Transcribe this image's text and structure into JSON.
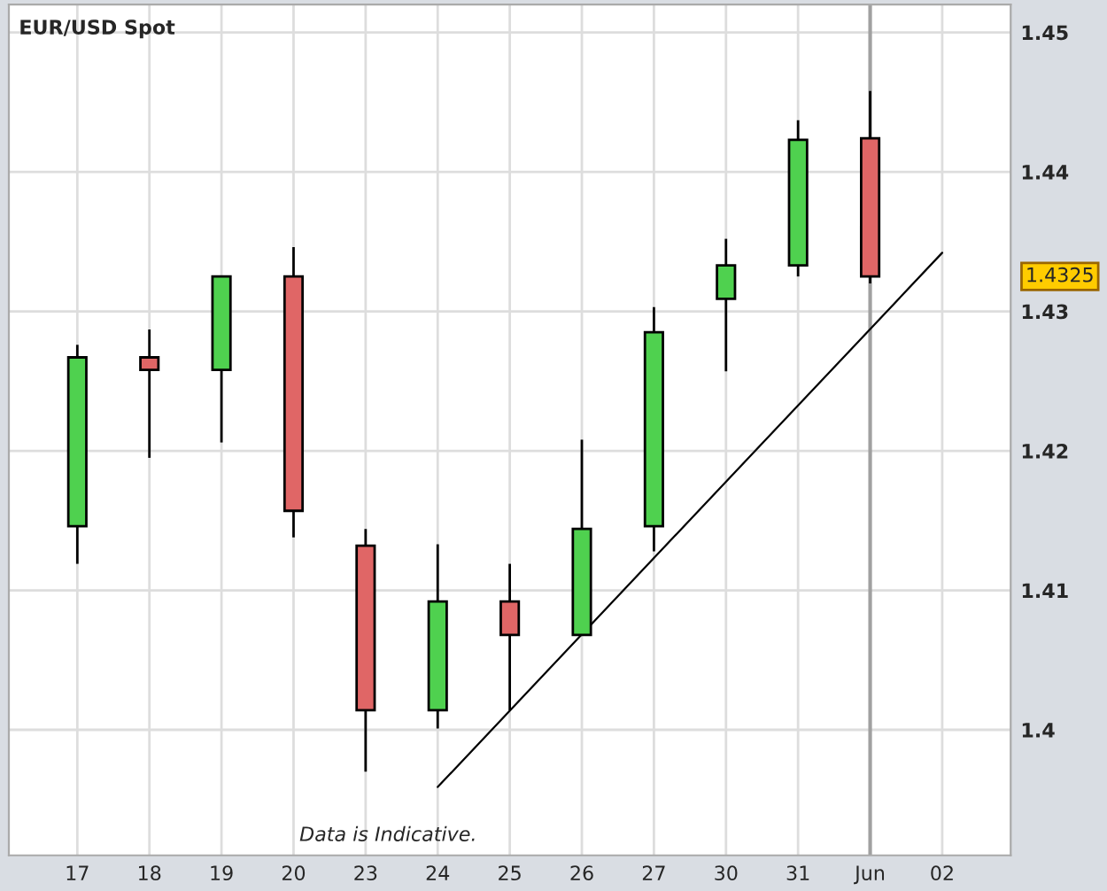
{
  "chart_data": {
    "type": "candlestick",
    "title": "EUR/USD Spot",
    "categories": [
      "17",
      "18",
      "19",
      "20",
      "23",
      "24",
      "25",
      "26",
      "27",
      "30",
      "31",
      "Jun",
      "02"
    ],
    "ohlc": [
      [
        1.4146,
        1.4276,
        1.4119,
        1.4267
      ],
      [
        1.4267,
        1.4287,
        1.4195,
        1.4258
      ],
      [
        1.4258,
        1.4325,
        1.4206,
        1.4325
      ],
      [
        1.4325,
        1.4346,
        1.4138,
        1.4157
      ],
      [
        1.4132,
        1.4144,
        1.397,
        1.4014
      ],
      [
        1.4014,
        1.4133,
        1.4001,
        1.4092
      ],
      [
        1.4092,
        1.4119,
        1.4014,
        1.4068
      ],
      [
        1.4068,
        1.4208,
        1.4068,
        1.4144
      ],
      [
        1.4146,
        1.4303,
        1.4128,
        1.4285
      ],
      [
        1.4309,
        1.4352,
        1.4257,
        1.4333
      ],
      [
        1.4333,
        1.4437,
        1.4325,
        1.4423
      ],
      [
        1.4424,
        1.4458,
        1.432,
        1.4325
      ],
      null
    ],
    "colors": [
      "#4fd14f",
      "#e06666",
      "#4fd14f",
      "#e06666",
      "#e06666",
      "#4fd14f",
      "#e06666",
      "#4fd14f",
      "#4fd14f",
      "#4fd14f",
      "#4fd14f",
      "#e06666",
      null
    ],
    "series": [
      {
        "type": "line",
        "color": "#000000",
        "x": [
          "24",
          "02"
        ],
        "values": [
          1.3959,
          1.4342
        ]
      }
    ],
    "ref_lines": [
      {
        "axis": "x",
        "value": "Jun",
        "color": "#a0a0a0"
      }
    ],
    "annotations": [
      "1.4325",
      "Data is Indicative."
    ],
    "ylim": [
      1.391,
      1.452
    ],
    "yticks": [
      1.4,
      1.41,
      1.42,
      1.43,
      1.44,
      1.45
    ],
    "grid": true
  }
}
